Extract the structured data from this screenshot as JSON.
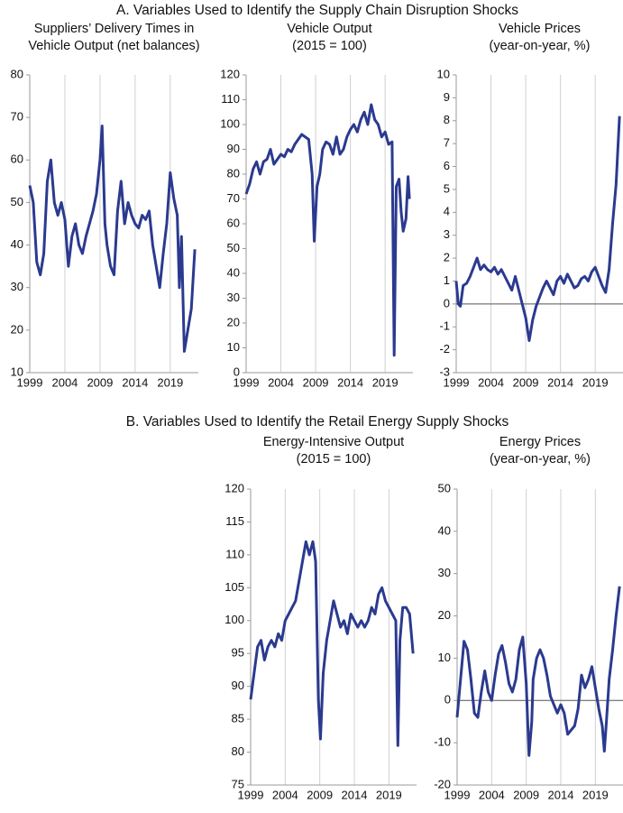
{
  "panel_a_title": "A. Variables Used to Identify the Supply Chain Disruption Shocks",
  "panel_b_title": "B. Variables Used to Identify the Retail Energy Supply Shocks",
  "chart_data": [
    {
      "type": "line",
      "title": [
        "Suppliers’ Delivery Times in",
        "Vehicle Output (net balances)"
      ],
      "color": "#2b3a8f",
      "grid": true,
      "zero_line": false,
      "xlim": [
        1999,
        2023
      ],
      "xticks": [
        1999,
        2004,
        2009,
        2014,
        2019
      ],
      "ylim": [
        10,
        80
      ],
      "yticks": [
        10,
        20,
        30,
        40,
        50,
        60,
        70,
        80
      ],
      "x": [
        1999,
        1999.5,
        2000,
        2000.5,
        2001,
        2001.5,
        2002,
        2002.5,
        2003,
        2003.5,
        2004,
        2004.5,
        2005,
        2005.5,
        2006,
        2006.5,
        2007,
        2007.5,
        2008,
        2008.5,
        2009,
        2009.3,
        2009.7,
        2010,
        2010.5,
        2011,
        2011.5,
        2012,
        2012.5,
        2013,
        2013.5,
        2014,
        2014.5,
        2015,
        2015.5,
        2016,
        2016.5,
        2017,
        2017.5,
        2018,
        2018.5,
        2019,
        2019.5,
        2020,
        2020.3,
        2020.6,
        2021,
        2021.5,
        2022,
        2022.5
      ],
      "values": [
        54,
        50,
        36,
        33,
        38,
        55,
        60,
        50,
        47,
        50,
        46,
        35,
        42,
        45,
        40,
        38,
        42,
        45,
        48,
        52,
        60,
        68,
        45,
        40,
        35,
        33,
        48,
        55,
        45,
        50,
        47,
        45,
        44,
        47,
        46,
        48,
        40,
        35,
        30,
        38,
        45,
        57,
        51,
        47,
        30,
        42,
        15,
        20,
        25,
        39
      ]
    },
    {
      "type": "line",
      "title": [
        "Vehicle Output",
        "(2015 = 100)"
      ],
      "color": "#2b3a8f",
      "grid": true,
      "zero_line": false,
      "xlim": [
        1999,
        2023
      ],
      "xticks": [
        1999,
        2004,
        2009,
        2014,
        2019
      ],
      "ylim": [
        0,
        120
      ],
      "yticks": [
        0,
        10,
        20,
        30,
        40,
        50,
        60,
        70,
        80,
        90,
        100,
        110,
        120
      ],
      "x": [
        1999,
        1999.5,
        2000,
        2000.5,
        2001,
        2001.5,
        2002,
        2002.5,
        2003,
        2003.5,
        2004,
        2004.5,
        2005,
        2005.5,
        2006,
        2006.5,
        2007,
        2007.5,
        2008,
        2008.5,
        2008.8,
        2009.2,
        2009.6,
        2010,
        2010.5,
        2011,
        2011.5,
        2012,
        2012.5,
        2013,
        2013.5,
        2014,
        2014.5,
        2015,
        2015.5,
        2016,
        2016.5,
        2017,
        2017.5,
        2018,
        2018.5,
        2019,
        2019.5,
        2020,
        2020.3,
        2020.6,
        2021,
        2021.3,
        2021.6,
        2022,
        2022.3,
        2022.5
      ],
      "values": [
        72,
        76,
        82,
        85,
        80,
        85,
        86,
        90,
        84,
        86,
        88,
        87,
        90,
        89,
        92,
        94,
        96,
        95,
        94,
        80,
        53,
        75,
        80,
        90,
        93,
        92,
        88,
        95,
        88,
        90,
        95,
        98,
        100,
        97,
        102,
        105,
        100,
        108,
        102,
        100,
        95,
        97,
        92,
        93,
        7,
        75,
        78,
        65,
        57,
        62,
        79,
        70
      ]
    },
    {
      "type": "line",
      "title": [
        "Vehicle Prices",
        "(year-on-year, %)"
      ],
      "color": "#2b3a8f",
      "grid": true,
      "zero_line": true,
      "xlim": [
        1999,
        2023
      ],
      "xticks": [
        1999,
        2004,
        2009,
        2014,
        2019
      ],
      "ylim": [
        -3,
        10
      ],
      "yticks": [
        -3,
        -2,
        -1,
        0,
        1,
        2,
        3,
        4,
        5,
        6,
        7,
        8,
        9,
        10
      ],
      "x": [
        1999,
        1999.3,
        1999.6,
        2000,
        2000.5,
        2001,
        2001.5,
        2002,
        2002.5,
        2003,
        2003.5,
        2004,
        2004.5,
        2005,
        2005.5,
        2006,
        2006.5,
        2007,
        2007.5,
        2008,
        2008.5,
        2009,
        2009.5,
        2010,
        2010.5,
        2011,
        2011.5,
        2012,
        2012.5,
        2013,
        2013.5,
        2014,
        2014.5,
        2015,
        2015.5,
        2016,
        2016.5,
        2017,
        2017.5,
        2018,
        2018.5,
        2019,
        2019.5,
        2020,
        2020.5,
        2021,
        2021.5,
        2022,
        2022.5
      ],
      "values": [
        1.0,
        0,
        -0.1,
        0.8,
        0.9,
        1.2,
        1.6,
        2.0,
        1.5,
        1.7,
        1.5,
        1.4,
        1.6,
        1.3,
        1.5,
        1.2,
        0.9,
        0.6,
        1.2,
        0.6,
        0,
        -0.6,
        -1.6,
        -0.7,
        -0.1,
        0.3,
        0.7,
        1.0,
        0.7,
        0.4,
        1.0,
        1.2,
        0.9,
        1.3,
        1.0,
        0.7,
        0.8,
        1.1,
        1.2,
        1.0,
        1.4,
        1.6,
        1.2,
        0.8,
        0.5,
        1.5,
        3.5,
        5.2,
        8.2
      ]
    },
    {
      "type": "line",
      "title": [
        "Energy-Intensive Output",
        "(2015 = 100)"
      ],
      "color": "#2b3a8f",
      "grid": true,
      "zero_line": false,
      "xlim": [
        1999,
        2023
      ],
      "xticks": [
        1999,
        2004,
        2009,
        2014,
        2019
      ],
      "ylim": [
        75,
        120
      ],
      "yticks": [
        75,
        80,
        85,
        90,
        95,
        100,
        105,
        110,
        115,
        120
      ],
      "x": [
        1999,
        1999.5,
        2000,
        2000.5,
        2001,
        2001.5,
        2002,
        2002.5,
        2003,
        2003.5,
        2004,
        2004.5,
        2005,
        2005.5,
        2006,
        2006.5,
        2007,
        2007.5,
        2008,
        2008.4,
        2008.8,
        2009.1,
        2009.5,
        2010,
        2010.5,
        2011,
        2011.5,
        2012,
        2012.5,
        2013,
        2013.5,
        2014,
        2014.5,
        2015,
        2015.5,
        2016,
        2016.5,
        2017,
        2017.5,
        2018,
        2018.5,
        2019,
        2019.5,
        2020,
        2020.3,
        2020.6,
        2021,
        2021.5,
        2022,
        2022.5
      ],
      "values": [
        88,
        92,
        96,
        97,
        94,
        96,
        97,
        96,
        98,
        97,
        100,
        101,
        102,
        103,
        106,
        109,
        112,
        110,
        112,
        109,
        88,
        82,
        92,
        97,
        100,
        103,
        101,
        99,
        100,
        98,
        101,
        100,
        99,
        100,
        99,
        100,
        102,
        101,
        104,
        105,
        103,
        102,
        101,
        100,
        81,
        97,
        102,
        102,
        101,
        95
      ]
    },
    {
      "type": "line",
      "title": [
        "Energy Prices",
        "(year-on-year, %)"
      ],
      "color": "#2b3a8f",
      "grid": true,
      "zero_line": true,
      "xlim": [
        1999,
        2023
      ],
      "xticks": [
        1999,
        2004,
        2009,
        2014,
        2019
      ],
      "ylim": [
        -20,
        50
      ],
      "yticks": [
        -20,
        -10,
        0,
        10,
        20,
        30,
        40,
        50
      ],
      "x": [
        1999,
        1999.5,
        2000,
        2000.5,
        2001,
        2001.5,
        2002,
        2002.5,
        2003,
        2003.5,
        2004,
        2004.5,
        2005,
        2005.5,
        2006,
        2006.5,
        2007,
        2007.5,
        2008,
        2008.5,
        2009,
        2009.4,
        2009.8,
        2010,
        2010.5,
        2011,
        2011.5,
        2012,
        2012.5,
        2013,
        2013.5,
        2014,
        2014.5,
        2015,
        2015.5,
        2016,
        2016.5,
        2017,
        2017.5,
        2018,
        2018.5,
        2019,
        2019.5,
        2020,
        2020.3,
        2020.6,
        2021,
        2021.5,
        2022,
        2022.5
      ],
      "values": [
        -4,
        5,
        14,
        12,
        5,
        -3,
        -4,
        2,
        7,
        2,
        0,
        6,
        11,
        13,
        9,
        4,
        2,
        5,
        12,
        15,
        4,
        -13,
        -5,
        5,
        10,
        12,
        10,
        6,
        1,
        -1,
        -3,
        -1,
        -3,
        -8,
        -7,
        -6,
        -2,
        6,
        3,
        5,
        8,
        3,
        -2,
        -6,
        -12,
        -5,
        5,
        12,
        20,
        27
      ]
    }
  ]
}
